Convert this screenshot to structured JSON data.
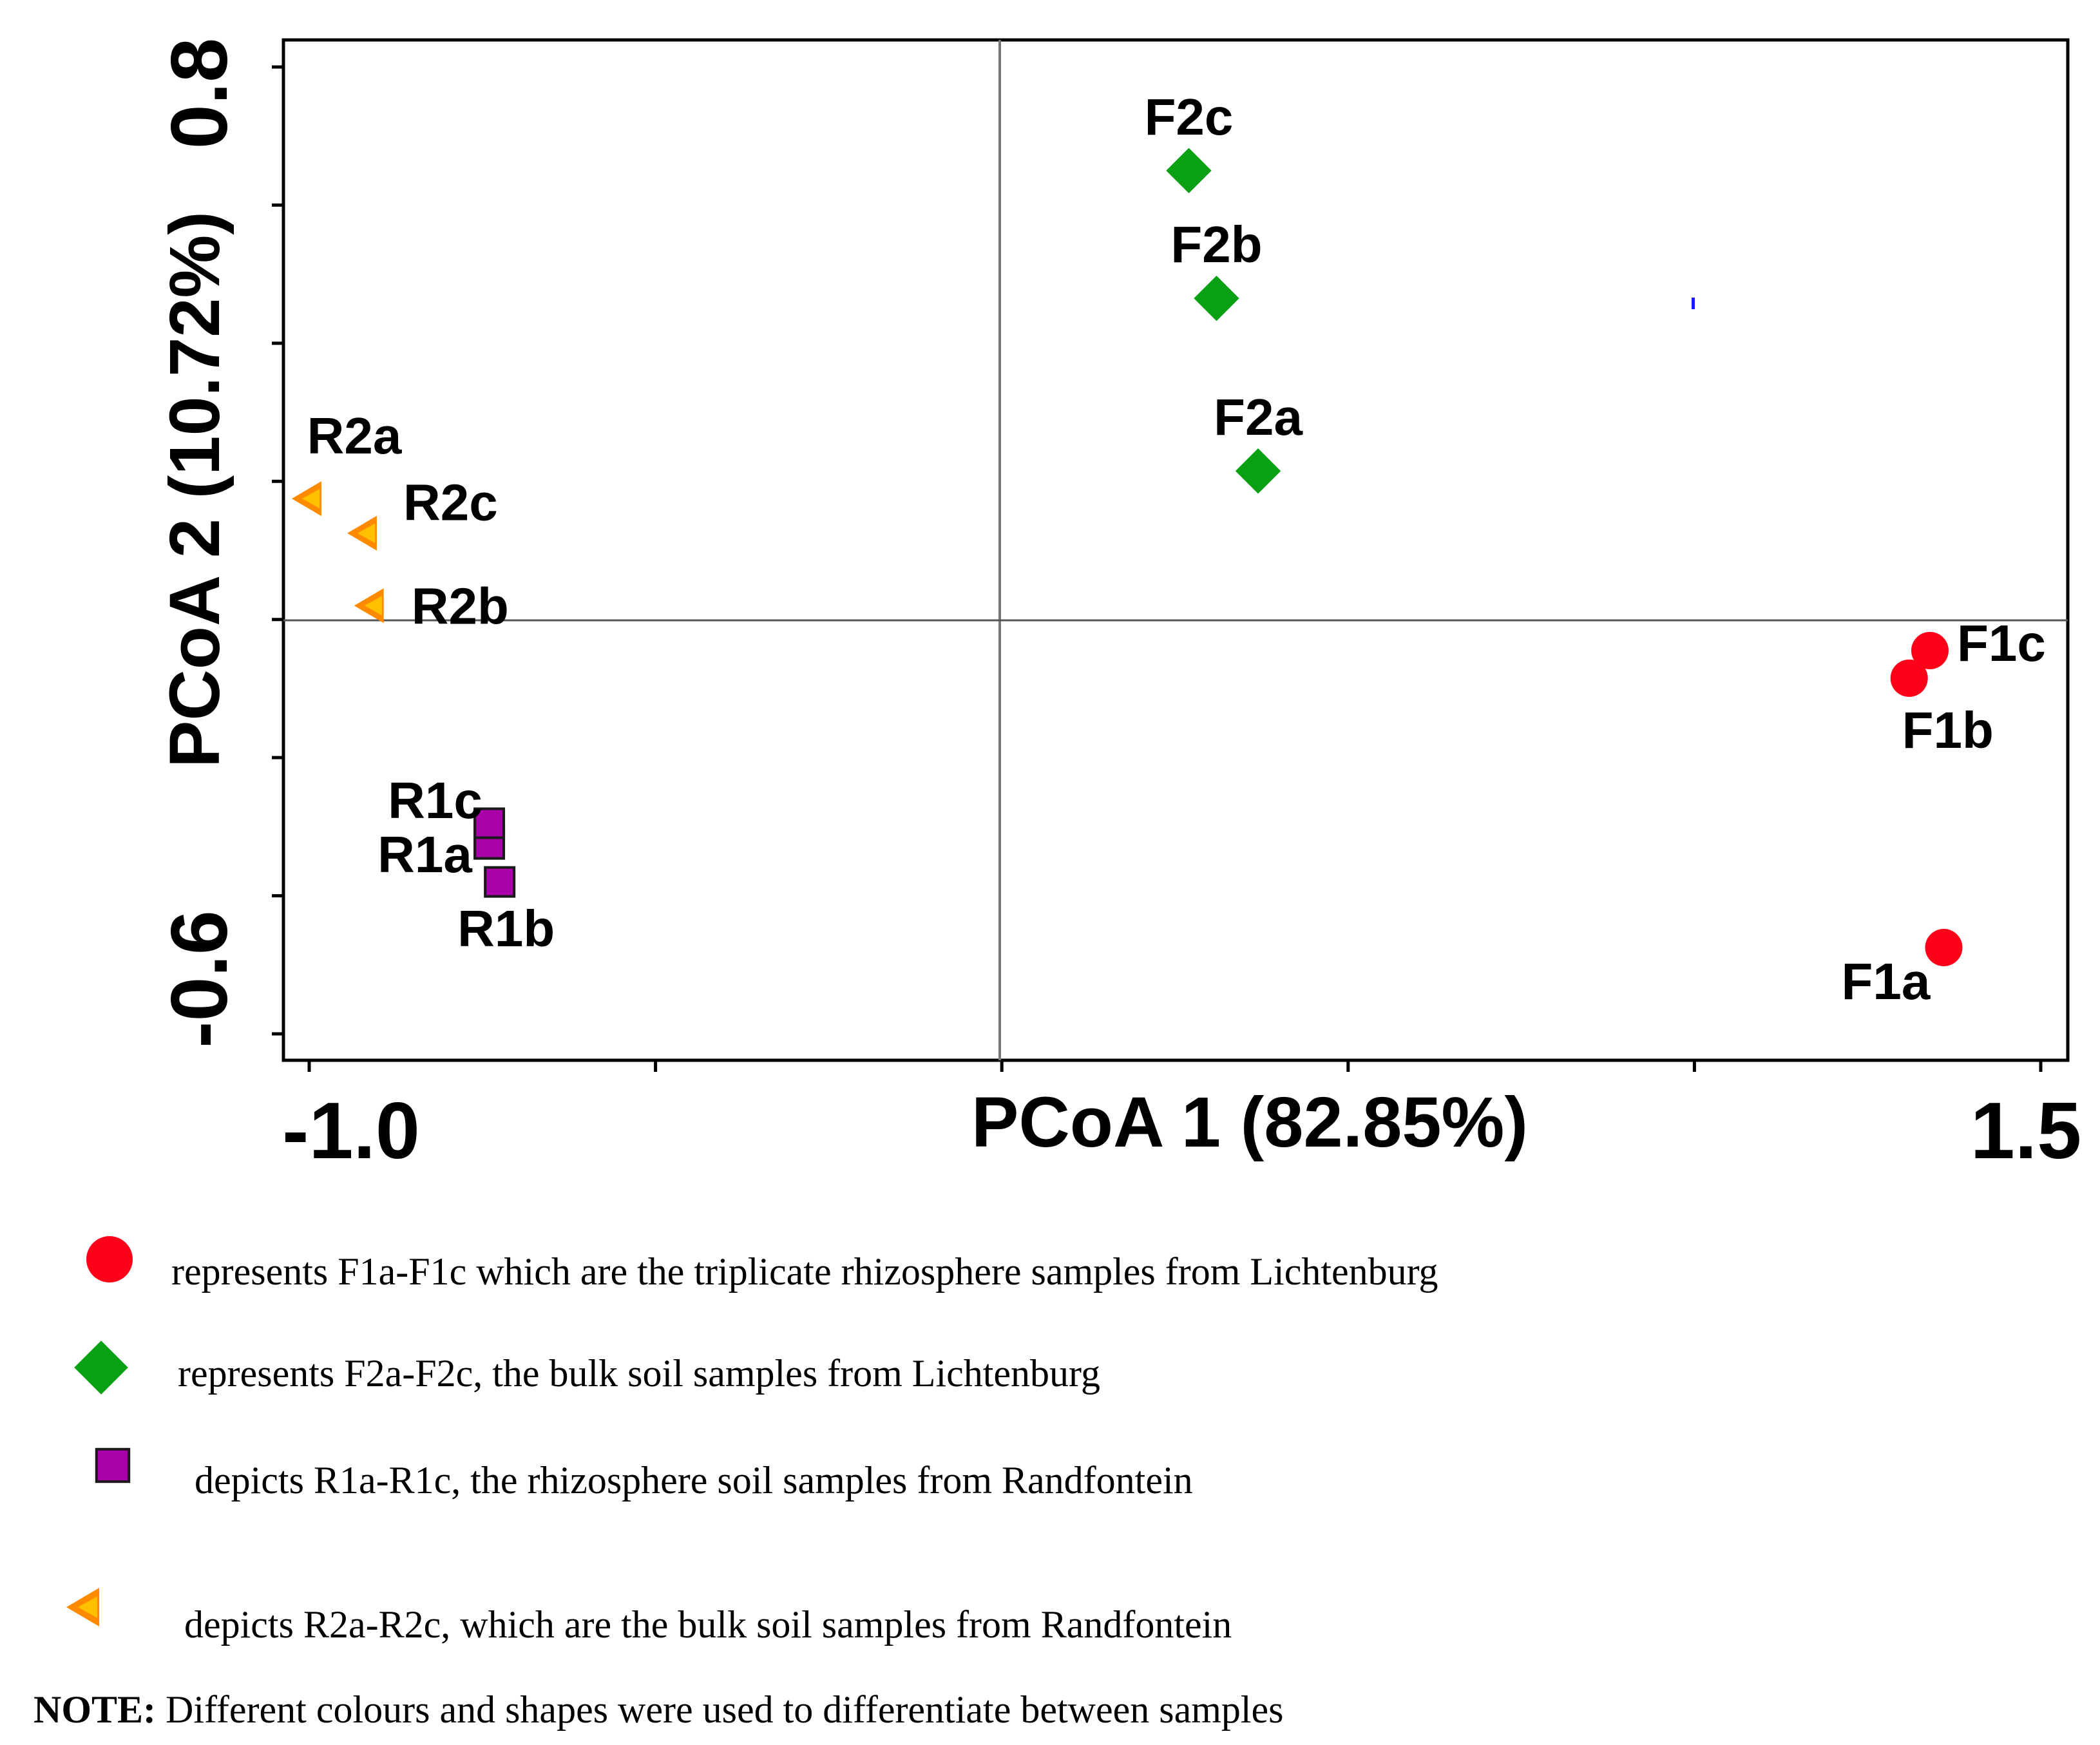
{
  "chart_data": {
    "type": "scatter",
    "xlabel": "PCoA 1 (82.85%)",
    "ylabel": "PCoA 2 (10.72%)",
    "xlim": [
      -1.0,
      1.5
    ],
    "ylim": [
      -0.6,
      0.8
    ],
    "x_tick_labels": [
      "-1.0",
      "1.5"
    ],
    "y_tick_labels": [
      "0.8",
      "-0.6"
    ],
    "series": [
      {
        "name": "F1",
        "marker": "circle",
        "color": "#ff0019",
        "points": [
          {
            "label": "F1a",
            "x": 1.36,
            "y": -0.475
          },
          {
            "label": "F1b",
            "x": 1.31,
            "y": -0.085
          },
          {
            "label": "F1c",
            "x": 1.34,
            "y": -0.045
          }
        ]
      },
      {
        "name": "F2",
        "marker": "diamond",
        "color": "#0aa014",
        "points": [
          {
            "label": "F2a",
            "x": 0.37,
            "y": 0.215
          },
          {
            "label": "F2b",
            "x": 0.31,
            "y": 0.465
          },
          {
            "label": "F2c",
            "x": 0.27,
            "y": 0.65
          }
        ]
      },
      {
        "name": "R1",
        "marker": "square",
        "color": "#aa00aa",
        "points": [
          {
            "label": "R1a",
            "x": -0.74,
            "y": -0.325
          },
          {
            "label": "R1b",
            "x": -0.725,
            "y": -0.38
          },
          {
            "label": "R1c",
            "x": -0.74,
            "y": -0.295
          }
        ]
      },
      {
        "name": "R2",
        "marker": "triangle-left",
        "color": "#ff8a00",
        "points": [
          {
            "label": "R2a",
            "x": -1.0,
            "y": 0.175
          },
          {
            "label": "R2b",
            "x": -0.91,
            "y": 0.02
          },
          {
            "label": "R2c",
            "x": -0.92,
            "y": 0.125
          }
        ]
      }
    ],
    "legend": [
      {
        "marker": "circle",
        "color": "#ff0019",
        "text": "represents F1a-F1c which are the triplicate rhizosphere samples from Lichtenburg"
      },
      {
        "marker": "diamond",
        "color": "#0aa014",
        "text": "represents F2a-F2c, the bulk soil samples from Lichtenburg"
      },
      {
        "marker": "square",
        "color": "#aa00aa",
        "text": "depicts R1a-R1c, the rhizosphere soil samples from Randfontein"
      },
      {
        "marker": "triangle-left",
        "color": "#ff8a00",
        "text": "depicts R2a-R2c, which are the bulk soil samples from Randfontein"
      }
    ],
    "note": {
      "label": "NOTE:",
      "text": " Different colours and shapes were used to differentiate between samples"
    }
  }
}
